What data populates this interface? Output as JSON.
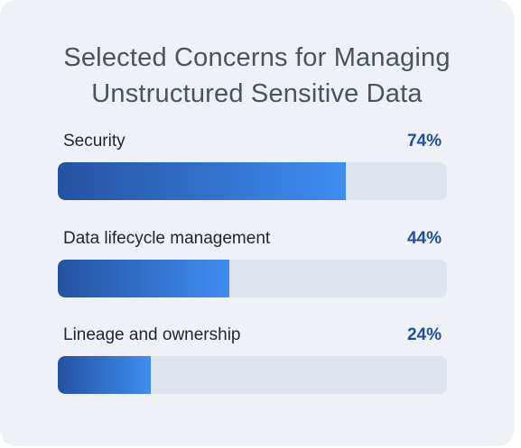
{
  "colors": {
    "card_background": "#eef1f6",
    "track": "#dfe5ee",
    "fill_start": "#2452a2",
    "fill_end": "#3f8df1",
    "value_text": "#1f4e9a"
  },
  "chart_data": {
    "type": "bar",
    "orientation": "horizontal",
    "title": "Selected Concerns for Managing Unstructured Sensitive Data",
    "title_lines": [
      "Selected Concerns for Managing",
      "Unstructured Sensitive Data"
    ],
    "categories": [
      "Security",
      "Data lifecycle management",
      "Lineage and ownership"
    ],
    "values": [
      74,
      44,
      24
    ],
    "value_labels": [
      "74%",
      "44%",
      "24%"
    ],
    "xlim": [
      0,
      100
    ],
    "grid": false
  }
}
